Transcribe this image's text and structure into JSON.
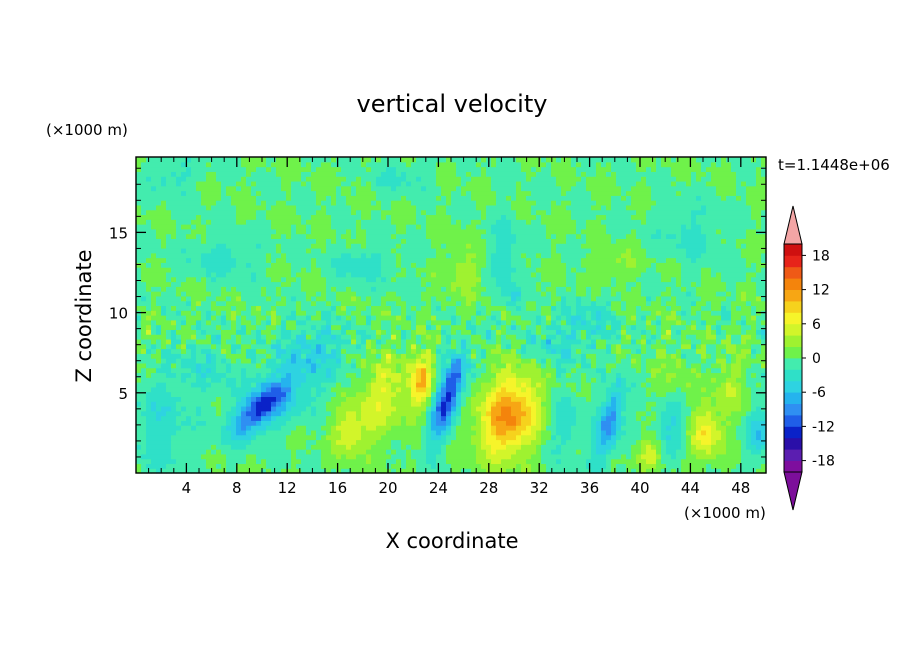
{
  "chart_data": {
    "type": "heatmap",
    "title": "vertical velocity",
    "xlabel": "X coordinate",
    "ylabel": "Z coordinate",
    "x_unit": "(×1000 m)",
    "y_unit": "(×1000 m)",
    "time_label": "t=1.1448e+06",
    "xlim": [
      0,
      50
    ],
    "ylim": [
      0,
      19.7
    ],
    "x_ticks": [
      4,
      8,
      12,
      16,
      20,
      24,
      28,
      32,
      36,
      40,
      44,
      48
    ],
    "y_ticks": [
      5,
      10,
      15
    ],
    "colorbar": {
      "levels": [
        -20,
        -18,
        -16,
        -14,
        -12,
        -10,
        -8,
        -6,
        -4,
        -2,
        0,
        2,
        4,
        6,
        8,
        10,
        12,
        14,
        16,
        18,
        20
      ],
      "tick_labels": [
        18,
        12,
        6,
        0,
        -6,
        -12,
        -18
      ],
      "colors": [
        "#7e0e9e",
        "#5b1eb0",
        "#2a0fa8",
        "#0a22c8",
        "#1f5ee8",
        "#2f8ff2",
        "#25b3ee",
        "#2ed3e1",
        "#2fe0c8",
        "#43ecae",
        "#6ff24a",
        "#9ff230",
        "#d2f52a",
        "#f6f42a",
        "#f6d21d",
        "#f7a614",
        "#f4840c",
        "#ef5a16",
        "#e7241a",
        "#cf1010"
      ],
      "under_color": "#7c0e9a",
      "over_color": "#f3a5a5"
    },
    "features": [
      {
        "kind": "updraft",
        "x": 29.5,
        "z": 3.5,
        "peak": 11
      },
      {
        "kind": "updraft",
        "x": 22.5,
        "z": 5.8,
        "peak": 8
      },
      {
        "kind": "updraft",
        "x": 19.5,
        "z": 5.0,
        "peak": 5
      },
      {
        "kind": "updraft",
        "x": 16.8,
        "z": 2.4,
        "peak": 5
      },
      {
        "kind": "updraft",
        "x": 45.0,
        "z": 2.4,
        "peak": 7
      },
      {
        "kind": "updraft",
        "x": 40.5,
        "z": 1.3,
        "peak": 5
      },
      {
        "kind": "downdraft",
        "x": 24.8,
        "z": 5.0,
        "peak": -12
      },
      {
        "kind": "downdraft",
        "x": 9.5,
        "z": 4.2,
        "peak": -9
      },
      {
        "kind": "downdraft",
        "x": 37.5,
        "z": 3.0,
        "peak": -9
      },
      {
        "kind": "downdraft",
        "x": 30.0,
        "z": 11.0,
        "peak": -4
      }
    ]
  }
}
